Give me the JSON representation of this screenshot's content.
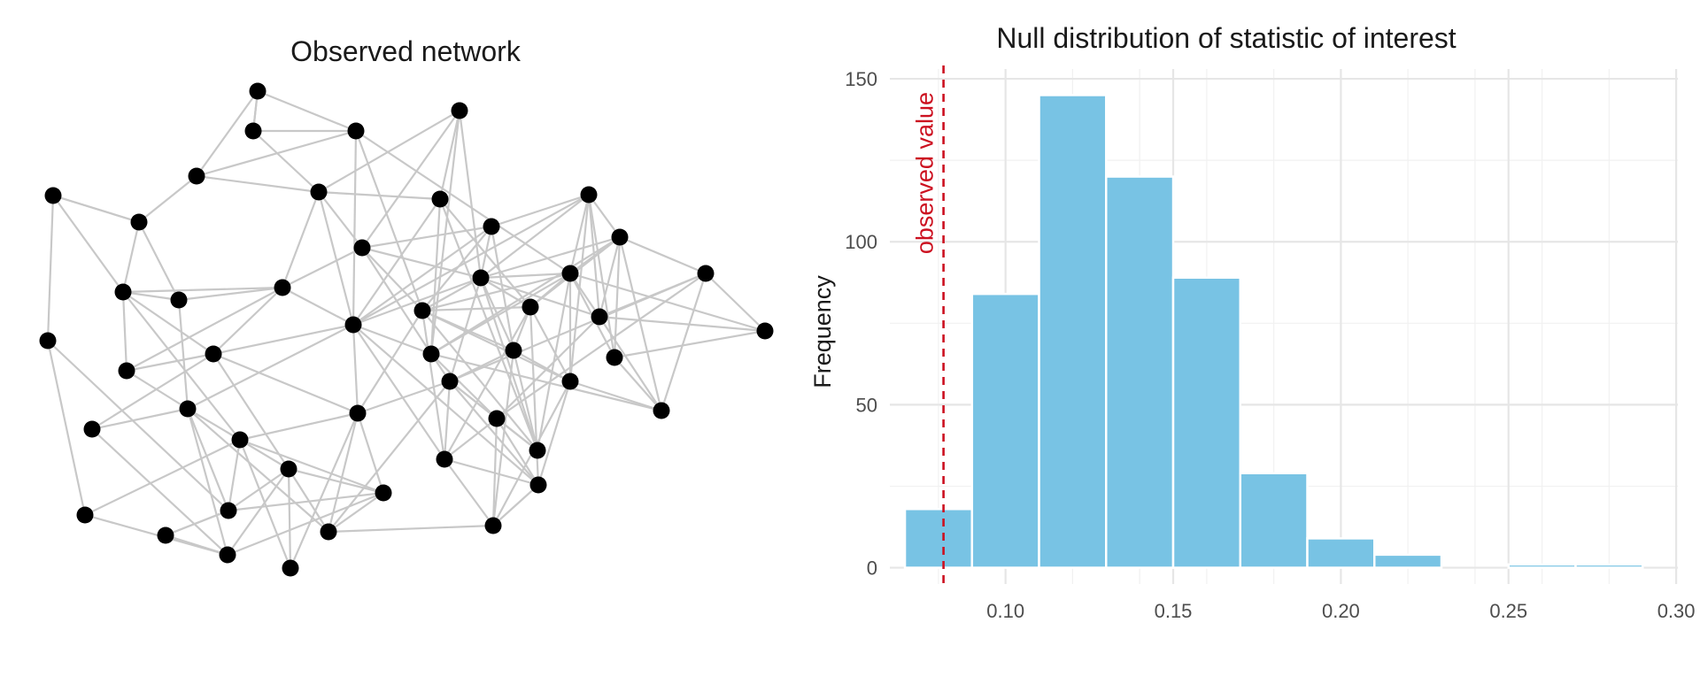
{
  "panels": {
    "left_title": "Observed network",
    "right_title": "Null distribution of statistic of interest"
  },
  "colors": {
    "edge": "#c8c8c8",
    "node": "#000000",
    "bar_fill": "#78c3e4",
    "bar_outline": "#ffffff",
    "observed_line": "#cc1020",
    "grid": "#e6e6e6",
    "axis_text": "#4d4d4d",
    "title_text": "#1a1a1a"
  },
  "chart_data": [
    {
      "type": "network",
      "title": "Observed network",
      "nodes": 50
    },
    {
      "type": "bar",
      "subtype": "histogram",
      "title": "Null distribution of statistic of interest",
      "xlabel": "",
      "ylabel": "Frequency",
      "bin_width": 0.02,
      "bins": [
        {
          "x0": 0.07,
          "x1": 0.09,
          "count": 18
        },
        {
          "x0": 0.09,
          "x1": 0.11,
          "count": 84
        },
        {
          "x0": 0.11,
          "x1": 0.13,
          "count": 145
        },
        {
          "x0": 0.13,
          "x1": 0.15,
          "count": 120
        },
        {
          "x0": 0.15,
          "x1": 0.17,
          "count": 89
        },
        {
          "x0": 0.17,
          "x1": 0.19,
          "count": 29
        },
        {
          "x0": 0.19,
          "x1": 0.21,
          "count": 9
        },
        {
          "x0": 0.21,
          "x1": 0.23,
          "count": 4
        },
        {
          "x0": 0.23,
          "x1": 0.25,
          "count": 0
        },
        {
          "x0": 0.25,
          "x1": 0.27,
          "count": 1
        },
        {
          "x0": 0.27,
          "x1": 0.29,
          "count": 1
        },
        {
          "x0": 0.29,
          "x1": 0.31,
          "count": 0
        }
      ],
      "xlim": [
        0.0655,
        0.3005
      ],
      "ylim": [
        -5,
        153
      ],
      "x_ticks": [
        0.1,
        0.15,
        0.2,
        0.25,
        0.3
      ],
      "x_tick_labels": [
        "0.10",
        "0.15",
        "0.20",
        "0.25",
        "0.30"
      ],
      "y_ticks": [
        0,
        50,
        100,
        150
      ],
      "y_tick_labels": [
        "0",
        "50",
        "100",
        "150"
      ],
      "observed_value": 0.0815,
      "observed_label": "observed value",
      "grid": true,
      "legend": "none"
    }
  ]
}
